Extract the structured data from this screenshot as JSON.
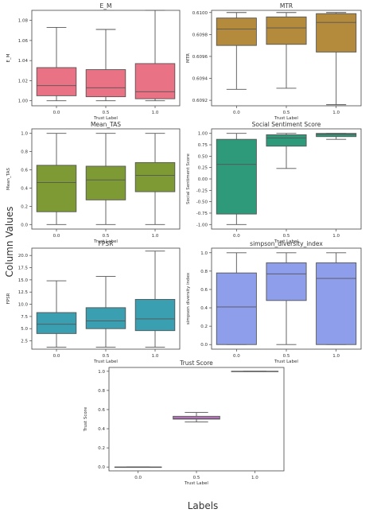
{
  "figure": {
    "ylabel": "Column Values",
    "xlabel": "Labels"
  },
  "chart_data": [
    {
      "type": "box",
      "title": "E_M",
      "xlabel": "Trust Label",
      "ylabel": "E_M",
      "categories": [
        "0.0",
        "0.5",
        "1.0"
      ],
      "ylim": [
        0.995,
        1.09
      ],
      "yticks": [
        1.0,
        1.02,
        1.04,
        1.06,
        1.08
      ],
      "ytick_labels": [
        "1.00",
        "1.02",
        "1.04",
        "1.06",
        "1.08"
      ],
      "color": "#ea7285",
      "boxes": [
        {
          "min": 1.0,
          "q1": 1.005,
          "median": 1.015,
          "q3": 1.033,
          "max": 1.073
        },
        {
          "min": 1.0,
          "q1": 1.004,
          "median": 1.013,
          "q3": 1.031,
          "max": 1.071
        },
        {
          "min": 1.0,
          "q1": 1.002,
          "median": 1.009,
          "q3": 1.037,
          "max": 1.09
        }
      ]
    },
    {
      "type": "box",
      "title": "MTR",
      "xlabel": "Trust Label",
      "ylabel": "MTR",
      "categories": [
        "0.0",
        "0.5",
        "1.0"
      ],
      "ylim": [
        0.60915,
        0.61002
      ],
      "yticks": [
        0.6092,
        0.6094,
        0.6096,
        0.6098,
        0.61
      ],
      "ytick_labels": [
        "0.6092",
        "0.6094",
        "0.6096",
        "0.6098",
        "0.6100"
      ],
      "color": "#b48a3c",
      "boxes": [
        {
          "min": 0.6093,
          "q1": 0.6097,
          "median": 0.60985,
          "q3": 0.60995,
          "max": 0.61
        },
        {
          "min": 0.60931,
          "q1": 0.60971,
          "median": 0.60986,
          "q3": 0.60996,
          "max": 0.61
        },
        {
          "min": 0.60916,
          "q1": 0.60964,
          "median": 0.60991,
          "q3": 0.60999,
          "max": 0.61
        }
      ]
    },
    {
      "type": "box",
      "title": "Mean_TAS",
      "xlabel": "Trust Label",
      "ylabel": "Mean_TAS",
      "categories": [
        "0.0",
        "0.5",
        "1.0"
      ],
      "ylim": [
        -0.05,
        1.05
      ],
      "yticks": [
        0.0,
        0.2,
        0.4,
        0.6,
        0.8,
        1.0
      ],
      "ytick_labels": [
        "0.0",
        "0.2",
        "0.4",
        "0.6",
        "0.8",
        "1.0"
      ],
      "color": "#7d9a35",
      "boxes": [
        {
          "min": 0.0,
          "q1": 0.14,
          "median": 0.46,
          "q3": 0.65,
          "max": 1.0
        },
        {
          "min": 0.0,
          "q1": 0.27,
          "median": 0.49,
          "q3": 0.64,
          "max": 1.0
        },
        {
          "min": 0.0,
          "q1": 0.36,
          "median": 0.54,
          "q3": 0.68,
          "max": 1.0
        }
      ]
    },
    {
      "type": "box",
      "title": "Social Sentiment Score",
      "xlabel": "Trust Label",
      "ylabel": "Social Sentiment Score",
      "categories": [
        "0.0",
        "0.5",
        "1.0"
      ],
      "ylim": [
        -1.1,
        1.1
      ],
      "yticks": [
        -1.0,
        -0.75,
        -0.5,
        -0.25,
        0.0,
        0.25,
        0.5,
        0.75,
        1.0
      ],
      "ytick_labels": [
        "-1.00",
        "-0.75",
        "-0.50",
        "-0.25",
        "0.00",
        "0.25",
        "0.50",
        "0.75",
        "1.00"
      ],
      "color": "#2e9a7a",
      "boxes": [
        {
          "min": -1.0,
          "q1": -0.77,
          "median": 0.32,
          "q3": 0.87,
          "max": 1.0
        },
        {
          "min": 0.23,
          "q1": 0.72,
          "median": 0.9,
          "q3": 0.97,
          "max": 1.0
        },
        {
          "min": 0.87,
          "q1": 0.93,
          "median": 0.98,
          "q3": 1.0,
          "max": 1.0
        }
      ]
    },
    {
      "type": "box",
      "title": "FPSR",
      "xlabel": "Trust Label",
      "ylabel": "FPSR",
      "categories": [
        "0.0",
        "0.5",
        "1.0"
      ],
      "ylim": [
        0.8,
        21.5
      ],
      "yticks": [
        2.5,
        5.0,
        7.5,
        10.0,
        12.5,
        15.0,
        17.5,
        20.0
      ],
      "ytick_labels": [
        "2.5",
        "5.0",
        "7.5",
        "10.0",
        "12.5",
        "15.0",
        "17.5",
        "20.0"
      ],
      "color": "#3a9fb0",
      "boxes": [
        {
          "min": 1.2,
          "q1": 4.0,
          "median": 5.9,
          "q3": 8.3,
          "max": 14.8
        },
        {
          "min": 1.2,
          "q1": 5.0,
          "median": 6.6,
          "q3": 9.3,
          "max": 15.7
        },
        {
          "min": 1.2,
          "q1": 4.6,
          "median": 7.0,
          "q3": 11.0,
          "max": 20.9
        }
      ]
    },
    {
      "type": "box",
      "title": "simpson_diversity_index",
      "xlabel": "Trust Label",
      "ylabel": "simpson diversity index",
      "categories": [
        "0.0",
        "0.5",
        "1.0"
      ],
      "ylim": [
        -0.05,
        1.05
      ],
      "yticks": [
        0.0,
        0.2,
        0.4,
        0.6,
        0.8,
        1.0
      ],
      "ytick_labels": [
        "0.0",
        "0.2",
        "0.4",
        "0.6",
        "0.8",
        "1.0"
      ],
      "color": "#8e9eea",
      "boxes": [
        {
          "min": 0.0,
          "q1": 0.0,
          "median": 0.41,
          "q3": 0.78,
          "max": 1.0
        },
        {
          "min": 0.0,
          "q1": 0.48,
          "median": 0.77,
          "q3": 0.89,
          "max": 1.0
        },
        {
          "min": 0.0,
          "q1": 0.0,
          "median": 0.72,
          "q3": 0.89,
          "max": 1.0
        }
      ]
    },
    {
      "type": "box",
      "title": "Trust Score",
      "xlabel": "Trust Label",
      "ylabel": "Trust Score",
      "categories": [
        "0.0",
        "0.5",
        "1.0"
      ],
      "ylim": [
        -0.04,
        1.04
      ],
      "yticks": [
        0.0,
        0.2,
        0.4,
        0.6,
        0.8,
        1.0
      ],
      "ytick_labels": [
        "0.0",
        "0.2",
        "0.4",
        "0.6",
        "0.8",
        "1.0"
      ],
      "color": "#d47fd8",
      "boxes": [
        {
          "min": 0.0,
          "q1": 0.0,
          "median": 0.0,
          "q3": 0.0,
          "max": 0.0
        },
        {
          "min": 0.47,
          "q1": 0.5,
          "median": 0.51,
          "q3": 0.53,
          "max": 0.57
        },
        {
          "min": 1.0,
          "q1": 1.0,
          "median": 1.0,
          "q3": 1.0,
          "max": 1.0
        }
      ]
    }
  ]
}
